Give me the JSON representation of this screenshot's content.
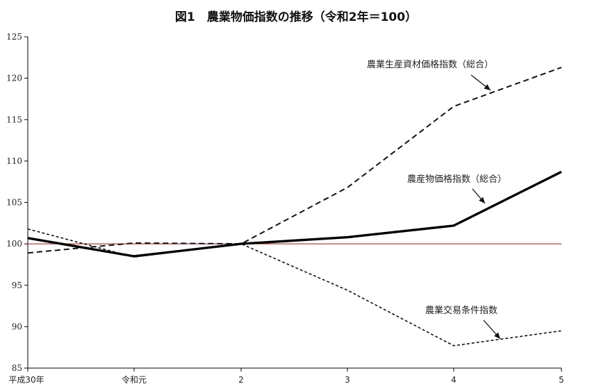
{
  "chart_data": {
    "type": "line",
    "title": "図1　農業物価指数の推移（令和2年＝100）",
    "xlabel": "",
    "ylabel": "",
    "categories": [
      "平成30年",
      "令和元",
      "2",
      "3",
      "4",
      "5"
    ],
    "ylim": [
      85,
      125
    ],
    "yticks": [
      85,
      90,
      95,
      100,
      105,
      110,
      115,
      120,
      125
    ],
    "reference_line": 100,
    "grid": false,
    "series": [
      {
        "name": "農業生産資材価格指数（総合）",
        "values": [
          98.9,
          100.1,
          100.0,
          106.8,
          116.6,
          121.3
        ],
        "style": "dashed",
        "color": "#111111"
      },
      {
        "name": "農産物価格指数（総合）",
        "values": [
          100.7,
          98.5,
          100.0,
          100.8,
          102.2,
          108.7
        ],
        "style": "solid-bold",
        "color": "#000000"
      },
      {
        "name": "農業交易条件指数",
        "values": [
          101.8,
          98.4,
          100.0,
          94.4,
          87.7,
          89.5
        ],
        "style": "dotted",
        "color": "#111111"
      }
    ],
    "reference_color": "#8b1a1a"
  }
}
